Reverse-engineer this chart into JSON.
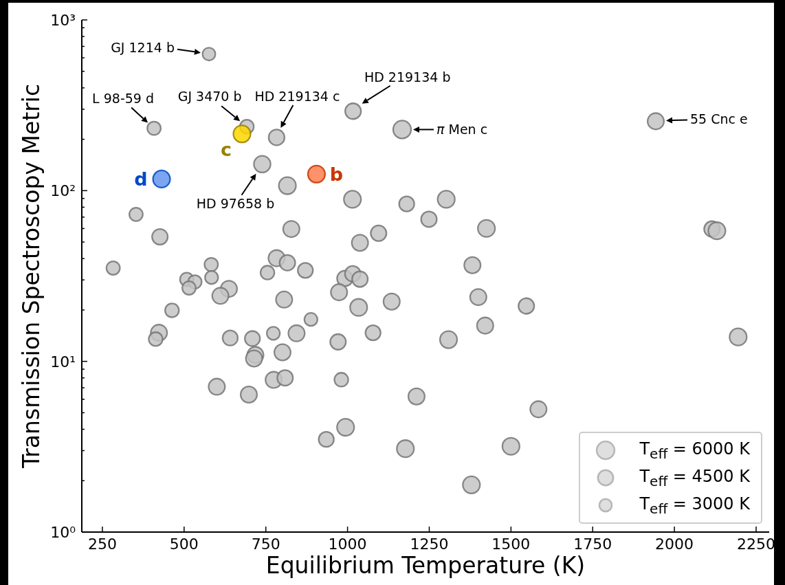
{
  "chart_data": {
    "type": "bubble",
    "xlabel": "Equilibrium Temperature (K)",
    "ylabel": "Transmission Spectroscopy Metric",
    "xlim": [
      187,
      2290
    ],
    "xticks": [
      250,
      500,
      750,
      1000,
      1250,
      1500,
      1750,
      2000,
      2250
    ],
    "ylim": [
      1,
      1000
    ],
    "yticks": [
      {
        "value": 1,
        "label": "10⁰"
      },
      {
        "value": 2,
        "label": null
      },
      {
        "value": 3,
        "label": null
      },
      {
        "value": 4,
        "label": null
      },
      {
        "value": 5,
        "label": null
      },
      {
        "value": 6,
        "label": null
      },
      {
        "value": 7,
        "label": null
      },
      {
        "value": 8,
        "label": null
      },
      {
        "value": 9,
        "label": null
      },
      {
        "value": 10,
        "label": "10¹"
      },
      {
        "value": 20,
        "label": null
      },
      {
        "value": 30,
        "label": null
      },
      {
        "value": 40,
        "label": null
      },
      {
        "value": 50,
        "label": null
      },
      {
        "value": 60,
        "label": null
      },
      {
        "value": 70,
        "label": null
      },
      {
        "value": 80,
        "label": null
      },
      {
        "value": 90,
        "label": null
      },
      {
        "value": 100,
        "label": "10²"
      },
      {
        "value": 200,
        "label": null
      },
      {
        "value": 300,
        "label": null
      },
      {
        "value": 400,
        "label": null
      },
      {
        "value": 500,
        "label": null
      },
      {
        "value": 600,
        "label": null
      },
      {
        "value": 700,
        "label": null
      },
      {
        "value": 800,
        "label": null
      },
      {
        "value": 900,
        "label": null
      },
      {
        "value": 1000,
        "label": "10³"
      }
    ],
    "log": "y",
    "marker": "circle",
    "size_legend": [
      {
        "value": 6000,
        "label": "T$_{eff}$ = 6000 K"
      },
      {
        "value": 4500,
        "label": "T$_{eff}$ = 4500 K"
      },
      {
        "value": 3000,
        "label": "T$_{eff}$ = 3000 K"
      }
    ],
    "series": [
      {
        "color": "#c4c4c4",
        "x": [
          576,
          408,
          692,
          783,
          1017,
          1167,
          739,
          816,
          1015,
          1181,
          353,
          426,
          828,
          1095,
          1038,
          1249,
          283,
          583,
          783,
          816,
          871,
          755,
          584,
          508,
          533,
          515,
          637,
          611,
          992,
          1016,
          1038,
          974,
          806,
          1034,
          1135,
          463,
          888,
          423,
          413,
          641,
          709,
          773,
          844,
          971,
          1078,
          718,
          714,
          801,
          1211,
          600,
          698,
          774,
          809,
          981,
          994,
          935,
          1177,
          1382,
          1400,
          1547,
          1421,
          1309,
          2195,
          1584,
          1500,
          1379,
          1302,
          1425,
          1943,
          2115,
          2130
        ],
        "values": [
          631,
          232,
          237,
          205,
          292,
          228,
          143,
          107,
          89,
          83.6,
          72.6,
          53.6,
          59.6,
          56.3,
          49.5,
          68,
          35.2,
          36.9,
          40.2,
          37.8,
          34.1,
          33.1,
          31,
          30.2,
          29.2,
          26.9,
          26.6,
          24.2,
          30.6,
          32.6,
          30.3,
          25.4,
          23,
          20.7,
          22.4,
          19.9,
          17.6,
          14.7,
          13.5,
          13.7,
          13.6,
          14.6,
          14.6,
          13,
          14.7,
          10.9,
          10.4,
          11.3,
          6.23,
          7.1,
          6.39,
          7.79,
          8,
          7.81,
          4.11,
          3.49,
          3.08,
          36.6,
          23.8,
          21.1,
          16.2,
          13.4,
          13.9,
          5.24,
          3.18,
          1.89,
          89,
          60.1,
          255,
          59.6,
          58.2
        ],
        "sizes": [
          3100,
          3400,
          3600,
          4700,
          4700,
          6000,
          5200,
          5500,
          5500,
          4300,
          3400,
          4600,
          5000,
          4600,
          5000,
          4600,
          3400,
          3400,
          5000,
          4600,
          4300,
          3600,
          3200,
          3400,
          3400,
          3400,
          5000,
          5000,
          4600,
          4600,
          4600,
          5000,
          5000,
          5500,
          5000,
          3600,
          3200,
          5000,
          3600,
          4300,
          4300,
          3200,
          5000,
          4600,
          4300,
          5000,
          5000,
          5000,
          5000,
          5000,
          5000,
          5000,
          4600,
          3600,
          5500,
          4300,
          5500,
          5000,
          5000,
          4600,
          5000,
          5500,
          5500,
          5000,
          5500,
          5500,
          5500,
          5500,
          5000,
          4600,
          5500
        ]
      },
      {
        "color": "#ff7f50",
        "x": [
          905
        ],
        "values": [
          125
        ],
        "sizes": [
          5500
        ]
      },
      {
        "color": "#ffd700",
        "x": [
          677
        ],
        "values": [
          215
        ],
        "sizes": [
          5500
        ]
      },
      {
        "color": "#6495ed",
        "x": [
          431
        ],
        "values": [
          117
        ],
        "sizes": [
          5500
        ]
      }
    ],
    "annotations": [
      {
        "text": "GJ 1214 b",
        "x": 576,
        "y": 631
      },
      {
        "text": "L 98-59 d",
        "x": 408,
        "y": 232
      },
      {
        "text": "GJ 3470 b",
        "x": 692,
        "y": 237
      },
      {
        "text": "HD 219134 c",
        "x": 783,
        "y": 205
      },
      {
        "text": "HD 219134 b",
        "x": 1017,
        "y": 292
      },
      {
        "text": "π Men c",
        "x": 1167,
        "y": 228
      },
      {
        "text": "HD 97658 b",
        "x": 739,
        "y": 143
      },
      {
        "text": "55 Cnc e",
        "x": 1943,
        "y": 255
      },
      {
        "text": "b",
        "x": 905,
        "y": 125
      },
      {
        "text": "c",
        "x": 677,
        "y": 215
      },
      {
        "text": "d",
        "x": 431,
        "y": 117
      }
    ]
  }
}
